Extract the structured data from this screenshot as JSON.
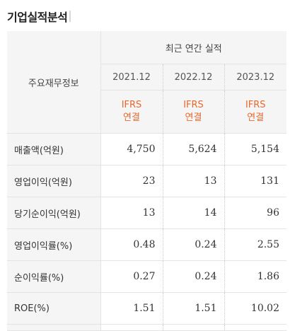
{
  "title": "기업실적분석",
  "header": {
    "row_label": "주요재무정보",
    "group": "최근 연간 실적",
    "years": [
      "2021.12",
      "2022.12",
      "2023.12"
    ],
    "ifrs_line1": "IFRS",
    "ifrs_line2": "연결"
  },
  "rows": [
    {
      "label": "매출액(억원)",
      "values": [
        "4,750",
        "5,624",
        "5,154"
      ]
    },
    {
      "label": "영업이익(억원)",
      "values": [
        "23",
        "13",
        "131"
      ]
    },
    {
      "label": "당기순이익(억원)",
      "values": [
        "13",
        "14",
        "96"
      ]
    },
    {
      "label": "영업이익률(%)",
      "values": [
        "0.48",
        "0.24",
        "2.55"
      ]
    },
    {
      "label": "순이익률(%)",
      "values": [
        "0.27",
        "0.24",
        "1.86"
      ]
    },
    {
      "label": "ROE(%)",
      "values": [
        "1.51",
        "1.51",
        "10.02"
      ]
    }
  ],
  "colors": {
    "accent": "#e8682c",
    "header_bg": "#f5f5f5",
    "border": "#e4e4e4"
  }
}
